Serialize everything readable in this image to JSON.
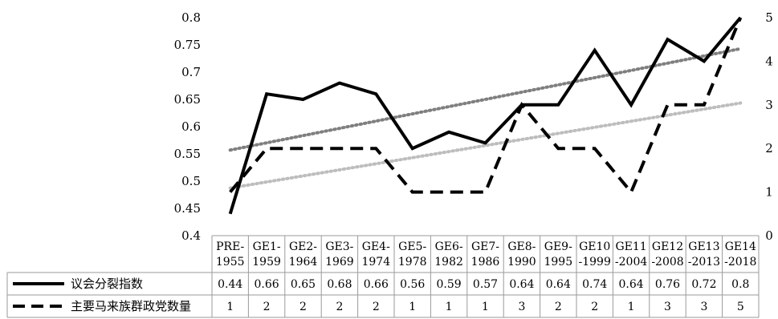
{
  "chart_data": {
    "type": "line",
    "categories": [
      [
        "PRE-",
        "1955"
      ],
      [
        "GE1-",
        "1959"
      ],
      [
        "GE2-",
        "1964"
      ],
      [
        "GE3-",
        "1969"
      ],
      [
        "GE4-",
        "1974"
      ],
      [
        "GE5-",
        "1978"
      ],
      [
        "GE6-",
        "1982"
      ],
      [
        "GE7-",
        "1986"
      ],
      [
        "GE8-",
        "1990"
      ],
      [
        "GE9-",
        "1995"
      ],
      [
        "GE10",
        "-1999"
      ],
      [
        "GE11",
        "-2004"
      ],
      [
        "GE12",
        "-2008"
      ],
      [
        "GE13",
        "-2013"
      ],
      [
        "GE14",
        "-2018"
      ]
    ],
    "y_left": {
      "min": 0.4,
      "max": 0.8,
      "ticks": [
        "0.4",
        "0.45",
        "0.5",
        "0.55",
        "0.6",
        "0.65",
        "0.7",
        "0.75",
        "0.8"
      ]
    },
    "y_right": {
      "min": 0,
      "max": 5,
      "ticks": [
        "0",
        "1",
        "2",
        "3",
        "4",
        "5"
      ]
    },
    "series": [
      {
        "name": "议会分裂指数",
        "axis": "left",
        "style": "solid",
        "color": "#000000",
        "values": [
          0.44,
          0.66,
          0.65,
          0.68,
          0.66,
          0.56,
          0.59,
          0.57,
          0.64,
          0.64,
          0.74,
          0.64,
          0.76,
          0.72,
          0.8
        ],
        "labels": [
          "0.44",
          "0.66",
          "0.65",
          "0.68",
          "0.66",
          "0.56",
          "0.59",
          "0.57",
          "0.64",
          "0.64",
          "0.74",
          "0.64",
          "0.76",
          "0.72",
          "0.8"
        ]
      },
      {
        "name": "主要马来族群政党数量",
        "axis": "right",
        "style": "dashed",
        "color": "#000000",
        "values": [
          1,
          2,
          2,
          2,
          2,
          1,
          1,
          1,
          3,
          2,
          2,
          1,
          3,
          3,
          5
        ],
        "labels": [
          "1",
          "2",
          "2",
          "2",
          "2",
          "1",
          "1",
          "1",
          "3",
          "2",
          "2",
          "1",
          "3",
          "3",
          "5"
        ]
      }
    ],
    "trendlines": [
      {
        "of_series": 0,
        "style": "dotted",
        "color": "#7f7f7f"
      },
      {
        "of_series": 1,
        "style": "dotted",
        "color": "#bdbdbd"
      }
    ],
    "grid": false,
    "legend": "data-table-left"
  }
}
